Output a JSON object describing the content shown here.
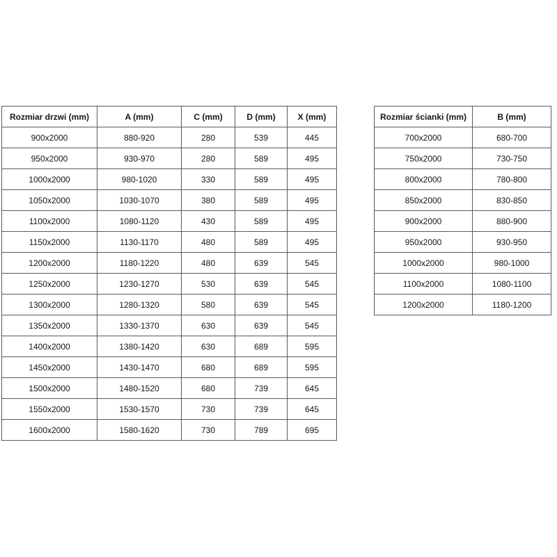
{
  "page": {
    "background_color": "#ffffff",
    "border_color": "#595959",
    "text_color": "#151515"
  },
  "door_table": {
    "headers": [
      "Rozmiar drzwi (mm)",
      "A (mm)",
      "C (mm)",
      "D (mm)",
      "X (mm)"
    ],
    "rows": [
      [
        "900x2000",
        "880-920",
        "280",
        "539",
        "445"
      ],
      [
        "950x2000",
        "930-970",
        "280",
        "589",
        "495"
      ],
      [
        "1000x2000",
        "980-1020",
        "330",
        "589",
        "495"
      ],
      [
        "1050x2000",
        "1030-1070",
        "380",
        "589",
        "495"
      ],
      [
        "1100x2000",
        "1080-1120",
        "430",
        "589",
        "495"
      ],
      [
        "1150x2000",
        "1130-1170",
        "480",
        "589",
        "495"
      ],
      [
        "1200x2000",
        "1180-1220",
        "480",
        "639",
        "545"
      ],
      [
        "1250x2000",
        "1230-1270",
        "530",
        "639",
        "545"
      ],
      [
        "1300x2000",
        "1280-1320",
        "580",
        "639",
        "545"
      ],
      [
        "1350x2000",
        "1330-1370",
        "630",
        "639",
        "545"
      ],
      [
        "1400x2000",
        "1380-1420",
        "630",
        "689",
        "595"
      ],
      [
        "1450x2000",
        "1430-1470",
        "680",
        "689",
        "595"
      ],
      [
        "1500x2000",
        "1480-1520",
        "680",
        "739",
        "645"
      ],
      [
        "1550x2000",
        "1530-1570",
        "730",
        "739",
        "645"
      ],
      [
        "1600x2000",
        "1580-1620",
        "730",
        "789",
        "695"
      ]
    ]
  },
  "wall_table": {
    "headers": [
      "Rozmiar ścianki (mm)",
      "B (mm)"
    ],
    "rows": [
      [
        "700x2000",
        "680-700"
      ],
      [
        "750x2000",
        "730-750"
      ],
      [
        "800x2000",
        "780-800"
      ],
      [
        "850x2000",
        "830-850"
      ],
      [
        "900x2000",
        "880-900"
      ],
      [
        "950x2000",
        "930-950"
      ],
      [
        "1000x2000",
        "980-1000"
      ],
      [
        "1100x2000",
        "1080-1100"
      ],
      [
        "1200x2000",
        "1180-1200"
      ]
    ]
  }
}
